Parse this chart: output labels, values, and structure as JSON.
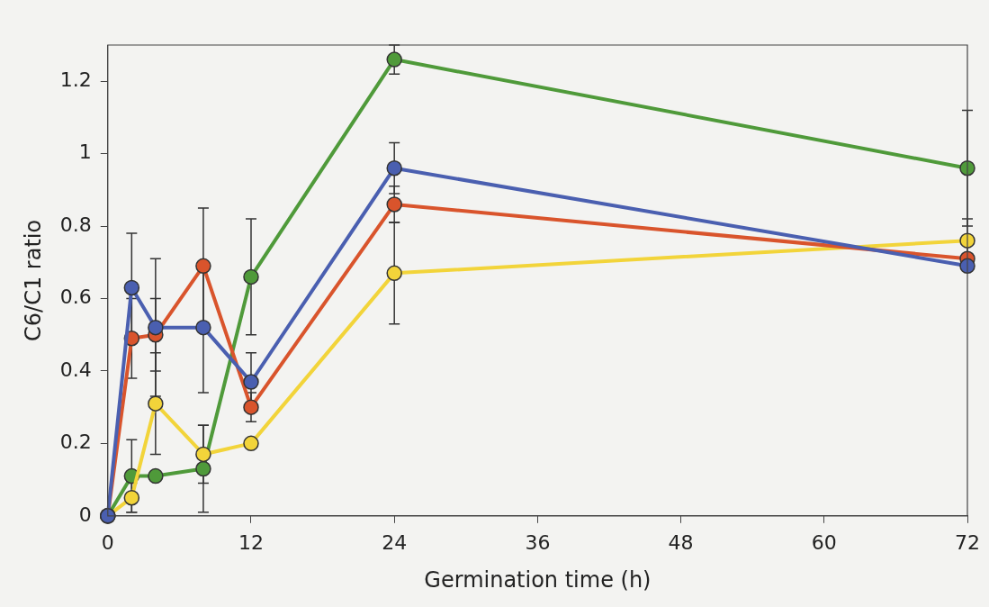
{
  "chart_data": {
    "type": "line",
    "xlabel": "Germination time (h)",
    "ylabel": "C6/C1 ratio",
    "x": [
      0,
      2,
      4,
      8,
      12,
      24,
      72
    ],
    "xlim": [
      0,
      72
    ],
    "xticks": [
      0,
      12,
      24,
      36,
      48,
      60,
      72
    ],
    "ylim": [
      0,
      1.3
    ],
    "yticks": [
      0,
      0.2,
      0.4,
      0.6,
      0.8,
      1,
      1.2
    ],
    "grid": false,
    "legend": false,
    "marker": "circle",
    "line_style": "solid",
    "series": [
      {
        "color": "#4a5fb0",
        "values": [
          0,
          0.63,
          0.52,
          0.52,
          0.37,
          0.96,
          0.69
        ],
        "errors": [
          null,
          0.15,
          0.19,
          0.18,
          0.08,
          0.07,
          null
        ]
      },
      {
        "color": "#d9542c",
        "values": [
          0,
          0.49,
          0.5,
          0.69,
          0.3,
          0.86,
          0.71
        ],
        "errors": [
          null,
          0.11,
          0.1,
          0.16,
          0.04,
          0.05,
          null
        ]
      },
      {
        "color": "#f2d43a",
        "values": [
          0,
          0.05,
          0.31,
          0.17,
          0.2,
          0.67,
          0.76
        ],
        "errors": [
          null,
          0.04,
          0.14,
          0.08,
          null,
          0.14,
          0.06
        ]
      },
      {
        "color": "#4f9a3a",
        "values": [
          0,
          0.11,
          0.11,
          0.13,
          0.66,
          1.26,
          0.96
        ],
        "errors": [
          null,
          0.1,
          null,
          0.12,
          0.16,
          0.04,
          0.16
        ]
      }
    ]
  }
}
